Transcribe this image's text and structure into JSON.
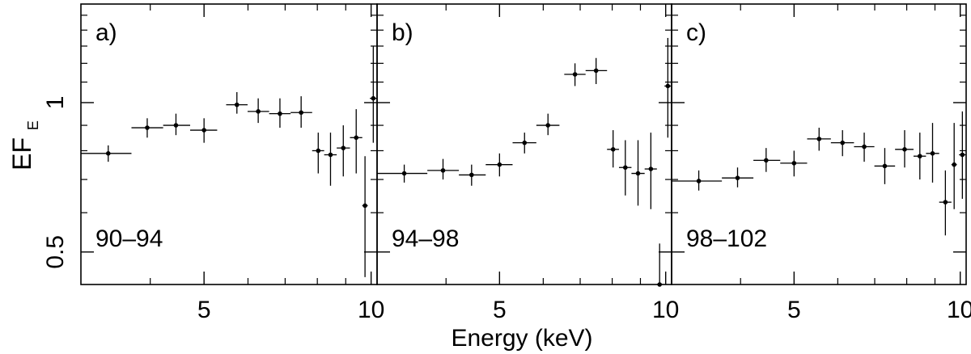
{
  "chart_data": {
    "type": "scatter",
    "xscale": "log",
    "yscale": "log",
    "xlim": [
      3,
      10.25
    ],
    "ylim": [
      0.43,
      1.58
    ],
    "xlabel": "Energy (keV)",
    "ylabel_main": "EF",
    "ylabel_sub": "E",
    "yticks": [
      {
        "value": 0.5,
        "label": "0.5"
      },
      {
        "value": 1,
        "label": "1"
      }
    ],
    "yminor": [
      0.6,
      0.7,
      0.8,
      0.9,
      1.1,
      1.2,
      1.3,
      1.4,
      1.5
    ],
    "xticks": [
      {
        "value": 5,
        "label": "5"
      },
      {
        "value": 10,
        "label": "10"
      }
    ],
    "xminor": [
      4,
      6,
      7,
      8,
      9
    ],
    "panels": [
      {
        "tag": "a)",
        "range_label": "90–94",
        "points": [
          {
            "x": 3.36,
            "xlo": 3.0,
            "xhi": 3.7,
            "y": 0.79,
            "ylo": 0.76,
            "yhi": 0.82
          },
          {
            "x": 3.95,
            "xlo": 3.7,
            "xhi": 4.22,
            "y": 0.89,
            "ylo": 0.85,
            "yhi": 0.93
          },
          {
            "x": 4.45,
            "xlo": 4.22,
            "xhi": 4.72,
            "y": 0.9,
            "ylo": 0.86,
            "yhi": 0.95
          },
          {
            "x": 5.0,
            "xlo": 4.72,
            "xhi": 5.28,
            "y": 0.88,
            "ylo": 0.83,
            "yhi": 0.93
          },
          {
            "x": 5.73,
            "xlo": 5.48,
            "xhi": 5.99,
            "y": 0.99,
            "ylo": 0.95,
            "yhi": 1.05
          },
          {
            "x": 6.26,
            "xlo": 5.99,
            "xhi": 6.55,
            "y": 0.96,
            "ylo": 0.91,
            "yhi": 1.02
          },
          {
            "x": 6.85,
            "xlo": 6.55,
            "xhi": 7.16,
            "y": 0.95,
            "ylo": 0.89,
            "yhi": 1.02
          },
          {
            "x": 7.48,
            "xlo": 7.16,
            "xhi": 7.83,
            "y": 0.955,
            "ylo": 0.89,
            "yhi": 1.03
          },
          {
            "x": 8.03,
            "xlo": 7.83,
            "xhi": 8.23,
            "y": 0.8,
            "ylo": 0.72,
            "yhi": 0.87
          },
          {
            "x": 8.45,
            "xlo": 8.23,
            "xhi": 8.67,
            "y": 0.785,
            "ylo": 0.68,
            "yhi": 0.87
          },
          {
            "x": 8.91,
            "xlo": 8.67,
            "xhi": 9.16,
            "y": 0.81,
            "ylo": 0.71,
            "yhi": 0.9
          },
          {
            "x": 9.4,
            "xlo": 9.16,
            "xhi": 9.64,
            "y": 0.85,
            "ylo": 0.72,
            "yhi": 0.97
          },
          {
            "x": 9.75,
            "xlo": 9.64,
            "xhi": 9.86,
            "y": 0.62,
            "ylo": 0.445,
            "yhi": 0.78
          },
          {
            "x": 10.09,
            "xlo": 9.95,
            "xhi": 10.25,
            "y": 1.02,
            "ylo": 0.83,
            "yhi": 1.3
          }
        ]
      },
      {
        "tag": "b)",
        "range_label": "94–98",
        "points": [
          {
            "x": 3.36,
            "xlo": 3.0,
            "xhi": 3.7,
            "y": 0.72,
            "ylo": 0.69,
            "yhi": 0.75
          },
          {
            "x": 3.95,
            "xlo": 3.7,
            "xhi": 4.22,
            "y": 0.73,
            "ylo": 0.7,
            "yhi": 0.77
          },
          {
            "x": 4.45,
            "xlo": 4.22,
            "xhi": 4.72,
            "y": 0.715,
            "ylo": 0.68,
            "yhi": 0.75
          },
          {
            "x": 5.0,
            "xlo": 4.72,
            "xhi": 5.28,
            "y": 0.75,
            "ylo": 0.71,
            "yhi": 0.79
          },
          {
            "x": 5.55,
            "xlo": 5.28,
            "xhi": 5.83,
            "y": 0.83,
            "ylo": 0.79,
            "yhi": 0.87
          },
          {
            "x": 6.12,
            "xlo": 5.83,
            "xhi": 6.42,
            "y": 0.9,
            "ylo": 0.86,
            "yhi": 0.95
          },
          {
            "x": 6.85,
            "xlo": 6.55,
            "xhi": 7.16,
            "y": 1.14,
            "ylo": 1.08,
            "yhi": 1.2
          },
          {
            "x": 7.48,
            "xlo": 7.16,
            "xhi": 7.83,
            "y": 1.16,
            "ylo": 1.09,
            "yhi": 1.23
          },
          {
            "x": 8.03,
            "xlo": 7.83,
            "xhi": 8.23,
            "y": 0.805,
            "ylo": 0.74,
            "yhi": 0.88
          },
          {
            "x": 8.45,
            "xlo": 8.23,
            "xhi": 8.67,
            "y": 0.74,
            "ylo": 0.65,
            "yhi": 0.84
          },
          {
            "x": 8.91,
            "xlo": 8.67,
            "xhi": 9.16,
            "y": 0.72,
            "ylo": 0.62,
            "yhi": 0.84
          },
          {
            "x": 9.4,
            "xlo": 9.16,
            "xhi": 9.64,
            "y": 0.735,
            "ylo": 0.61,
            "yhi": 0.87
          },
          {
            "x": 9.75,
            "xlo": 9.64,
            "xhi": 9.86,
            "y": 0.43,
            "ylo": 0.4,
            "yhi": 0.52
          },
          {
            "x": 10.09,
            "xlo": 9.95,
            "xhi": 10.25,
            "y": 1.08,
            "ylo": 0.85,
            "yhi": 1.35
          }
        ]
      },
      {
        "tag": "c)",
        "range_label": "98–102",
        "points": [
          {
            "x": 3.36,
            "xlo": 3.0,
            "xhi": 3.7,
            "y": 0.695,
            "ylo": 0.665,
            "yhi": 0.73
          },
          {
            "x": 3.95,
            "xlo": 3.7,
            "xhi": 4.22,
            "y": 0.705,
            "ylo": 0.675,
            "yhi": 0.74
          },
          {
            "x": 4.45,
            "xlo": 4.22,
            "xhi": 4.72,
            "y": 0.765,
            "ylo": 0.725,
            "yhi": 0.81
          },
          {
            "x": 5.0,
            "xlo": 4.72,
            "xhi": 5.28,
            "y": 0.755,
            "ylo": 0.71,
            "yhi": 0.8
          },
          {
            "x": 5.55,
            "xlo": 5.28,
            "xhi": 5.83,
            "y": 0.845,
            "ylo": 0.8,
            "yhi": 0.89
          },
          {
            "x": 6.12,
            "xlo": 5.83,
            "xhi": 6.42,
            "y": 0.83,
            "ylo": 0.78,
            "yhi": 0.88
          },
          {
            "x": 6.7,
            "xlo": 6.42,
            "xhi": 6.99,
            "y": 0.815,
            "ylo": 0.76,
            "yhi": 0.87
          },
          {
            "x": 7.3,
            "xlo": 6.99,
            "xhi": 7.62,
            "y": 0.745,
            "ylo": 0.685,
            "yhi": 0.81
          },
          {
            "x": 7.93,
            "xlo": 7.62,
            "xhi": 8.23,
            "y": 0.805,
            "ylo": 0.74,
            "yhi": 0.88
          },
          {
            "x": 8.45,
            "xlo": 8.23,
            "xhi": 8.67,
            "y": 0.78,
            "ylo": 0.7,
            "yhi": 0.87
          },
          {
            "x": 8.91,
            "xlo": 8.67,
            "xhi": 9.16,
            "y": 0.79,
            "ylo": 0.69,
            "yhi": 0.91
          },
          {
            "x": 9.4,
            "xlo": 9.16,
            "xhi": 9.64,
            "y": 0.63,
            "ylo": 0.54,
            "yhi": 0.73
          },
          {
            "x": 9.75,
            "xlo": 9.64,
            "xhi": 9.86,
            "y": 0.75,
            "ylo": 0.61,
            "yhi": 0.91
          },
          {
            "x": 10.09,
            "xlo": 9.95,
            "xhi": 10.25,
            "y": 0.785,
            "ylo": 0.64,
            "yhi": 0.96
          }
        ]
      }
    ]
  }
}
